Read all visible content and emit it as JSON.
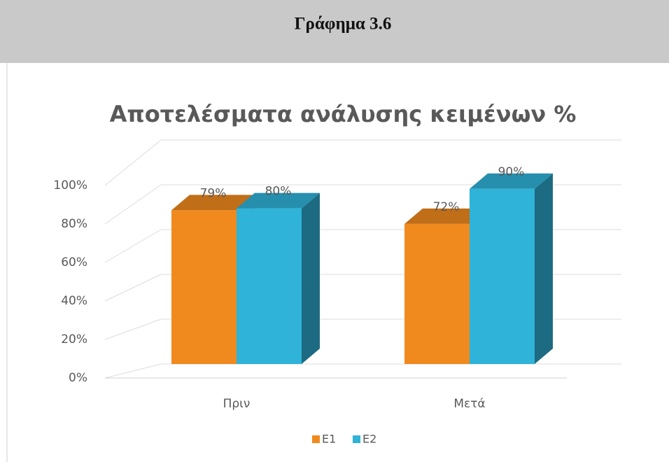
{
  "header": {
    "title": "Γράφημα 3.6"
  },
  "chart_data": {
    "type": "bar3d",
    "title": "Αποτελέσματα ανάλυσης κειμένων %",
    "categories": [
      "Πριν",
      "Μετά"
    ],
    "series": [
      {
        "name": "E1",
        "color": "#f08a1e",
        "values": [
          79,
          72
        ],
        "value_labels": [
          "79%",
          "72%"
        ]
      },
      {
        "name": "E2",
        "color": "#2fb3d8",
        "values": [
          80,
          90
        ],
        "value_labels": [
          "80%",
          "90%"
        ]
      }
    ],
    "ylim": [
      0,
      100
    ],
    "yticks": [
      {
        "value": 0,
        "label": "0%"
      },
      {
        "value": 20,
        "label": "20%"
      },
      {
        "value": 40,
        "label": "40%"
      },
      {
        "value": 60,
        "label": "60%"
      },
      {
        "value": 80,
        "label": "80%"
      },
      {
        "value": 100,
        "label": "100%"
      }
    ],
    "grid": true,
    "legend": "bottom"
  }
}
